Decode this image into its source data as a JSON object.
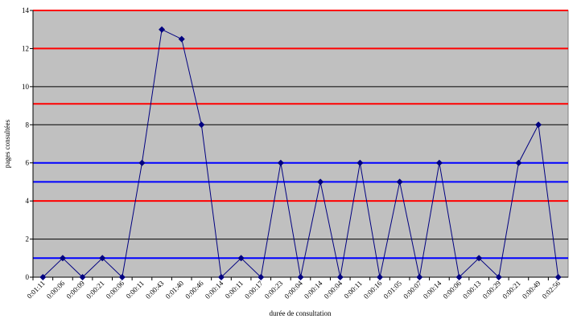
{
  "chart_data": {
    "type": "line",
    "x_label": "durée de consultation",
    "y_label": "pages consultées",
    "categories": [
      "0:01:11",
      "0:00:06",
      "0:00:09",
      "0:00:21",
      "0:00:06",
      "0:00:11",
      "0:00:43",
      "0:01:40",
      "0:00:46",
      "0:00:14",
      "0:00:11",
      "0:00:17",
      "0:00:23",
      "0:00:04",
      "0:00:14",
      "0:00:04",
      "0:00:11",
      "0:00:16",
      "0:01:05",
      "0:00:07",
      "0:00:14",
      "0:00:06",
      "0:00:13",
      "0:00:29",
      "0:00:21",
      "0:00:49",
      "0:02:56"
    ],
    "series": [
      {
        "color": "#000080",
        "values": [
          0,
          1,
          0,
          1,
          0,
          6,
          13,
          12.5,
          8,
          0,
          1,
          0,
          6,
          0,
          5,
          0,
          6,
          0,
          5,
          0,
          6,
          0,
          1,
          0,
          6,
          8,
          0
        ]
      }
    ],
    "ylim": [
      0,
      14
    ],
    "yticks": [
      0,
      2,
      4,
      6,
      8,
      10,
      12,
      14
    ],
    "grid": true,
    "reference_lines": [
      {
        "value": 14,
        "color": "#ff0000"
      },
      {
        "value": 12,
        "color": "#ff0000"
      },
      {
        "value": 9.1,
        "color": "#ff0000"
      },
      {
        "value": 4,
        "color": "#ff0000"
      },
      {
        "value": 6,
        "color": "#0000ff"
      },
      {
        "value": 5,
        "color": "#0000ff"
      },
      {
        "value": 1,
        "color": "#0000ff"
      }
    ]
  }
}
